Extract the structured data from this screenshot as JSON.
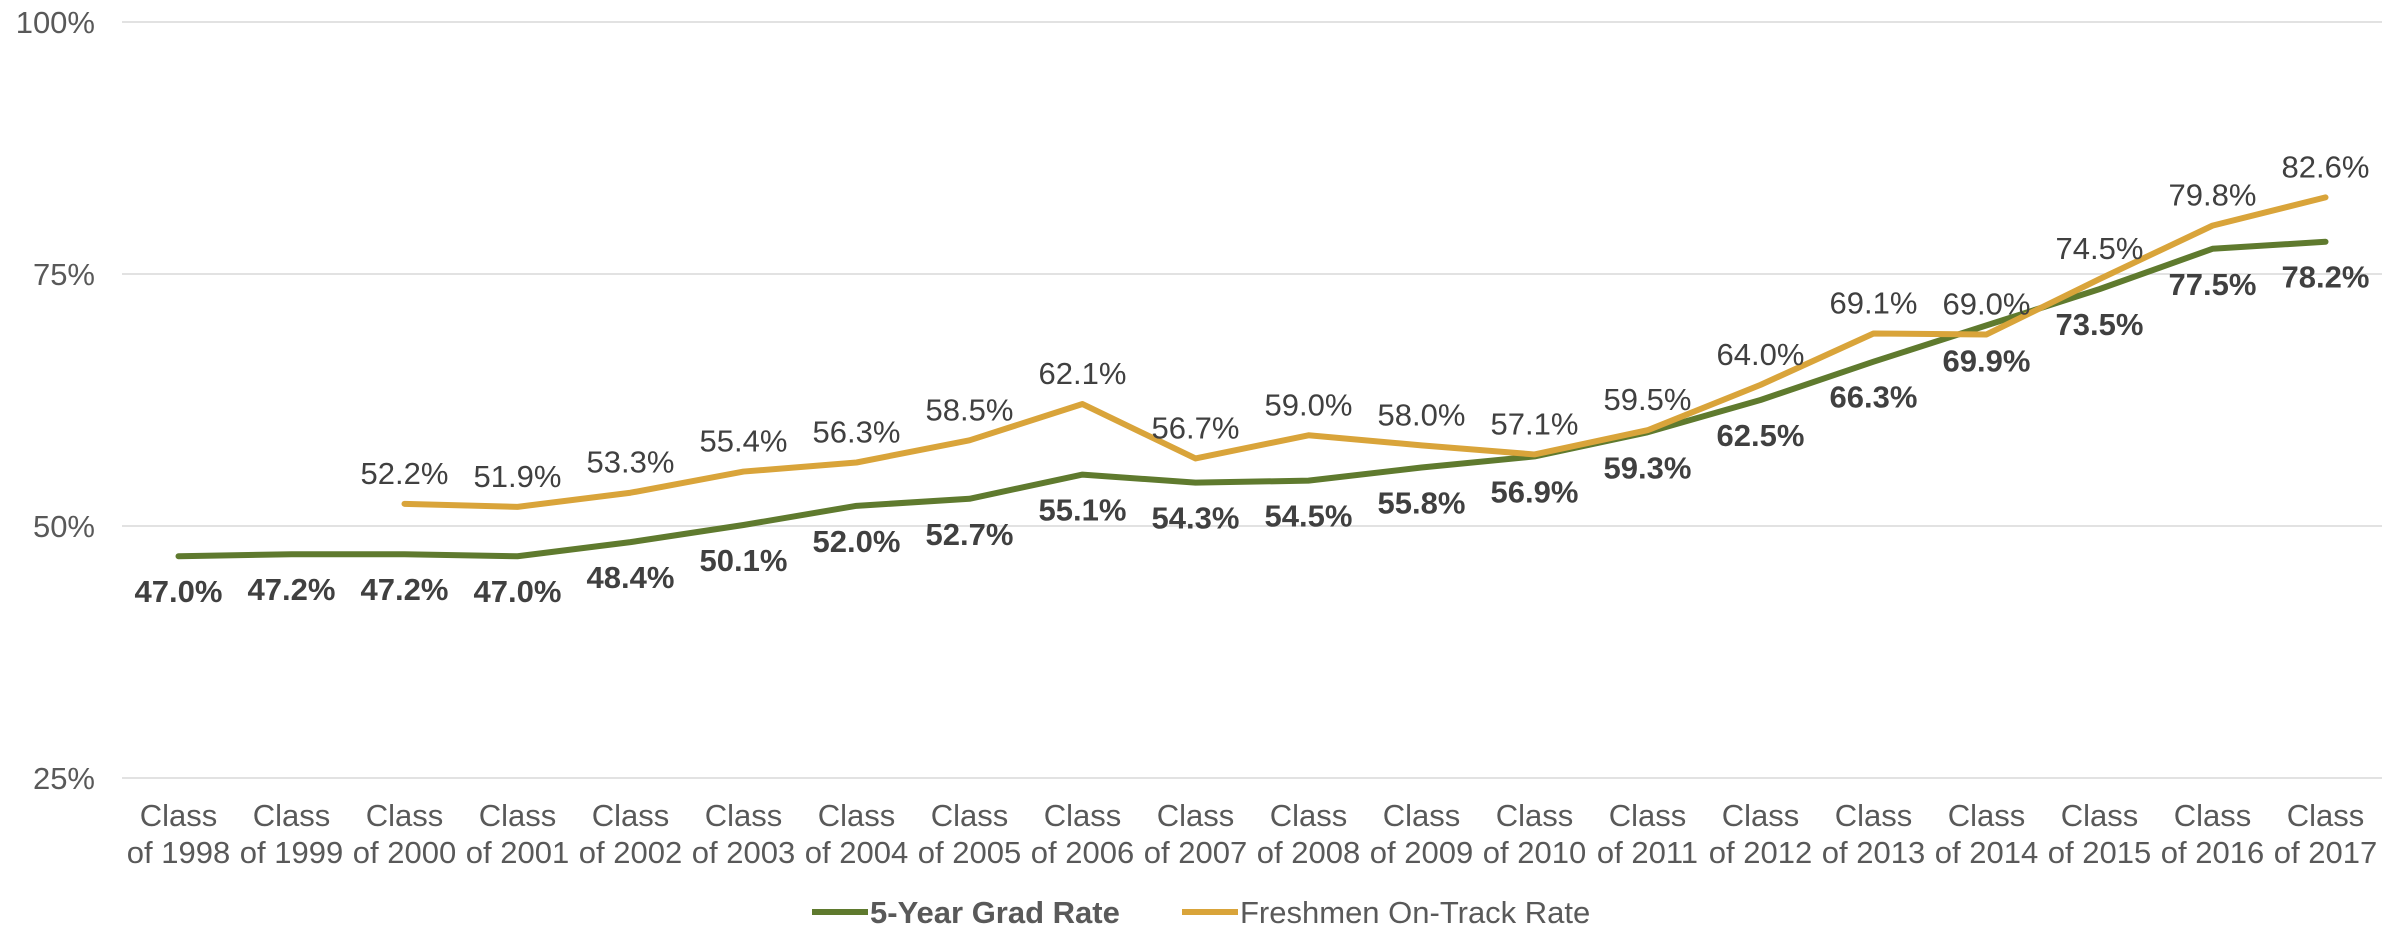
{
  "chart_data": {
    "type": "line",
    "title": "",
    "xlabel": "",
    "ylabel": "",
    "ylim": [
      25,
      100
    ],
    "yticks": [
      25,
      50,
      75,
      100
    ],
    "ytick_labels": [
      "25%",
      "50%",
      "75%",
      "100%"
    ],
    "grid": true,
    "legend_position": "bottom",
    "categories": [
      [
        "Class",
        "of 1998"
      ],
      [
        "Class",
        "of 1999"
      ],
      [
        "Class",
        "of 2000"
      ],
      [
        "Class",
        "of 2001"
      ],
      [
        "Class",
        "of 2002"
      ],
      [
        "Class",
        "of 2003"
      ],
      [
        "Class",
        "of 2004"
      ],
      [
        "Class",
        "of 2005"
      ],
      [
        "Class",
        "of 2006"
      ],
      [
        "Class",
        "of 2007"
      ],
      [
        "Class",
        "of 2008"
      ],
      [
        "Class",
        "of 2009"
      ],
      [
        "Class",
        "of 2010"
      ],
      [
        "Class",
        "of 2011"
      ],
      [
        "Class",
        "of 2012"
      ],
      [
        "Class",
        "of 2013"
      ],
      [
        "Class",
        "of 2014"
      ],
      [
        "Class",
        "of 2015"
      ],
      [
        "Class",
        "of 2016"
      ],
      [
        "Class",
        "of 2017"
      ]
    ],
    "series": [
      {
        "name": "5-Year Grad Rate",
        "color": "#5f7a2e",
        "label_style": "bold",
        "label_position": "below",
        "values": [
          47.0,
          47.2,
          47.2,
          47.0,
          48.4,
          50.1,
          52.0,
          52.7,
          55.1,
          54.3,
          54.5,
          55.8,
          56.9,
          59.3,
          62.5,
          66.3,
          69.9,
          73.5,
          77.5,
          78.2
        ],
        "labels": [
          "47.0%",
          "47.2%",
          "47.2%",
          "47.0%",
          "48.4%",
          "50.1%",
          "52.0%",
          "52.7%",
          "55.1%",
          "54.3%",
          "54.5%",
          "55.8%",
          "56.9%",
          "59.3%",
          "62.5%",
          "66.3%",
          "69.9%",
          "73.5%",
          "77.5%",
          "78.2%"
        ]
      },
      {
        "name": "Freshmen On-Track Rate",
        "color": "#d9a43a",
        "label_style": "normal",
        "label_position": "above",
        "values": [
          null,
          null,
          52.2,
          51.9,
          53.3,
          55.4,
          56.3,
          58.5,
          62.1,
          56.7,
          59.0,
          58.0,
          57.1,
          59.5,
          64.0,
          69.1,
          69.0,
          74.5,
          79.8,
          82.6
        ],
        "labels": [
          null,
          null,
          "52.2%",
          "51.9%",
          "53.3%",
          "55.4%",
          "56.3%",
          "58.5%",
          "62.1%",
          "56.7%",
          "59.0%",
          "58.0%",
          "57.1%",
          "59.5%",
          "64.0%",
          "69.1%",
          "69.0%",
          "74.5%",
          "79.8%",
          "82.6%"
        ]
      }
    ]
  }
}
